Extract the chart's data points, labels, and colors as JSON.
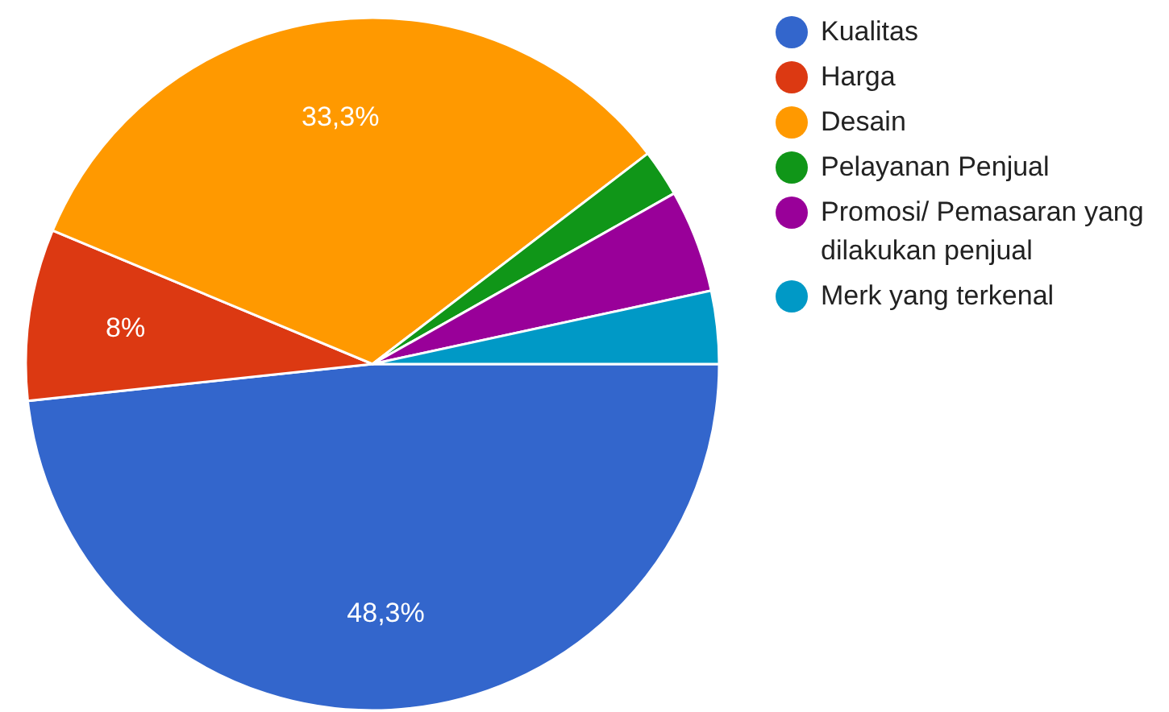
{
  "chart_data": {
    "type": "pie",
    "categories": [
      "Kualitas",
      "Harga",
      "Desain",
      "Pelayanan Penjual",
      "Promosi/ Pemasaran yang dilakukan penjual",
      "Merk yang terkenal"
    ],
    "values": [
      48.3,
      8,
      33.3,
      2.2,
      4.8,
      3.4
    ],
    "colors": [
      "#3366cc",
      "#dc3912",
      "#ff9900",
      "#109618",
      "#990099",
      "#0099c6"
    ],
    "value_labels": [
      "48,3%",
      "8%",
      "33,3%",
      null,
      null,
      null
    ],
    "legend": "right"
  }
}
